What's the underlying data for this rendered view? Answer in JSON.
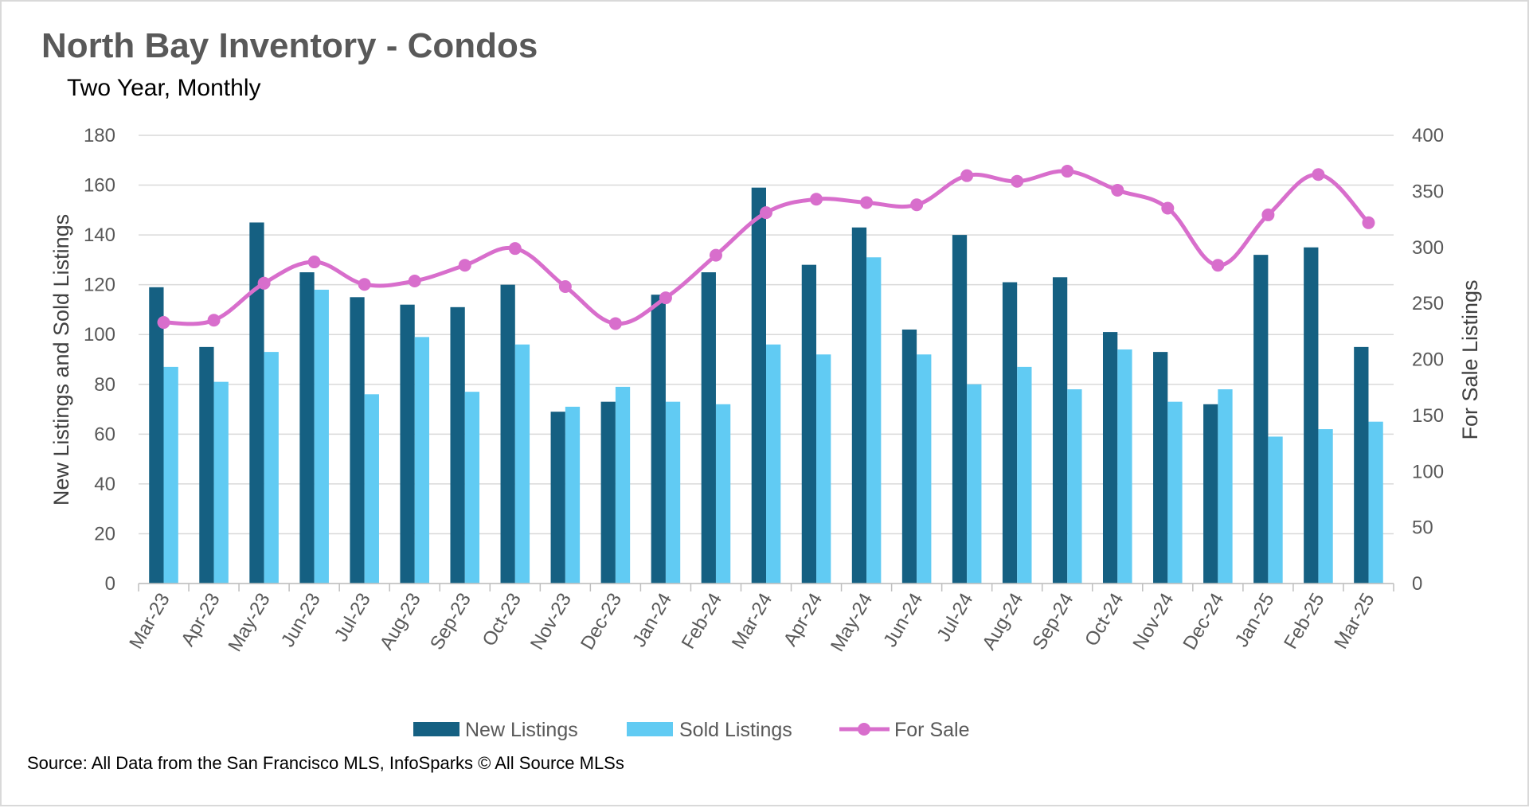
{
  "chart_data": {
    "type": "bar",
    "title": "North Bay Inventory - Condos",
    "subtitle": "Two Year, Monthly",
    "ylabel_left": "New Listings and Sold Listings",
    "ylabel_right": "For Sale Listings",
    "source": "Source: All Data from the San Francisco MLS, InfoSparks © All Source MLSs",
    "ylim_left": [
      0,
      180
    ],
    "yticks_left": [
      "0",
      "20",
      "40",
      "60",
      "80",
      "100",
      "120",
      "140",
      "160",
      "180"
    ],
    "ylim_right": [
      0,
      400
    ],
    "yticks_right": [
      "0",
      "50",
      "100",
      "150",
      "200",
      "250",
      "300",
      "350",
      "400"
    ],
    "grid": true,
    "legend_position": "bottom",
    "categories": [
      "Mar-23",
      "Apr-23",
      "May-23",
      "Jun-23",
      "Jul-23",
      "Aug-23",
      "Sep-23",
      "Oct-23",
      "Nov-23",
      "Dec-23",
      "Jan-24",
      "Feb-24",
      "Mar-24",
      "Apr-24",
      "May-24",
      "Jun-24",
      "Jul-24",
      "Aug-24",
      "Sep-24",
      "Oct-24",
      "Nov-24",
      "Dec-24",
      "Jan-25",
      "Feb-25",
      "Mar-25"
    ],
    "series": [
      {
        "name": "New Listings",
        "type": "bar",
        "axis": "left",
        "color": "#156082",
        "values": [
          119,
          95,
          145,
          125,
          115,
          112,
          111,
          120,
          69,
          73,
          116,
          125,
          159,
          128,
          143,
          102,
          140,
          121,
          123,
          101,
          93,
          72,
          132,
          135,
          95
        ]
      },
      {
        "name": "Sold Listings",
        "type": "bar",
        "axis": "left",
        "color": "#61CBF3",
        "values": [
          87,
          81,
          93,
          118,
          76,
          99,
          77,
          96,
          71,
          79,
          73,
          72,
          96,
          92,
          131,
          92,
          80,
          87,
          78,
          94,
          73,
          78,
          59,
          62,
          65
        ]
      },
      {
        "name": "For Sale",
        "type": "line",
        "axis": "right",
        "color": "#D86ECC",
        "values": [
          233,
          235,
          268,
          287,
          267,
          270,
          284,
          299,
          265,
          232,
          255,
          293,
          331,
          343,
          340,
          338,
          364,
          359,
          368,
          351,
          335,
          284,
          329,
          365,
          322
        ]
      }
    ]
  }
}
